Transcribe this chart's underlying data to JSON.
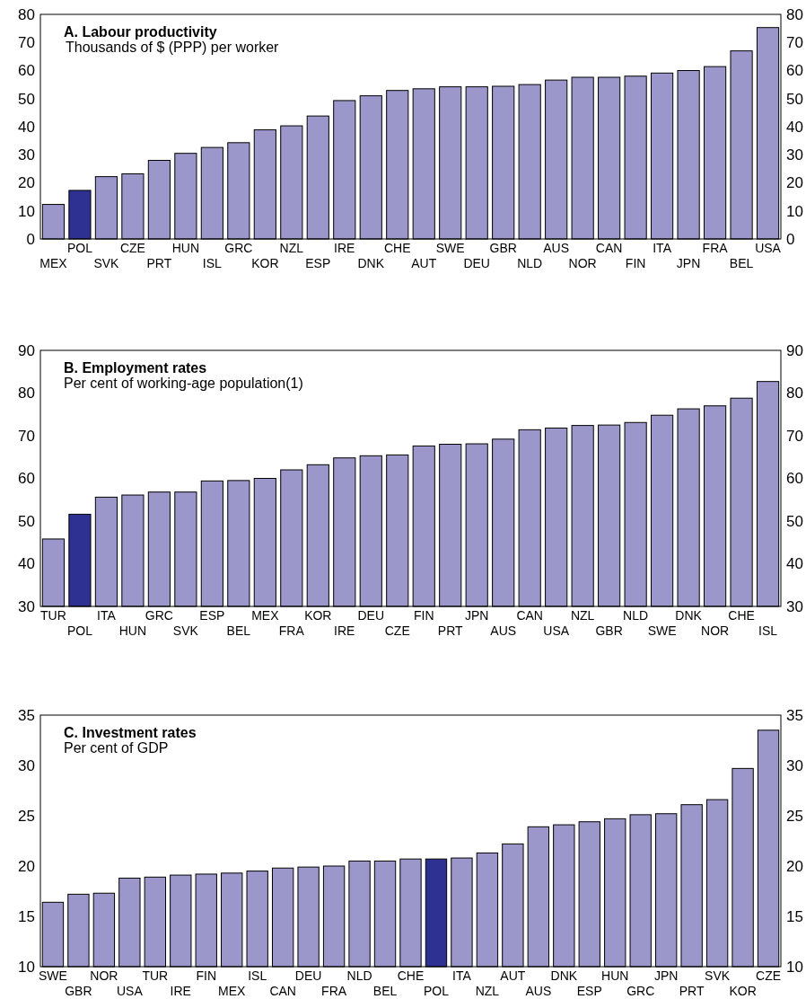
{
  "chart_data": [
    {
      "type": "bar",
      "title": "A. Labour productivity",
      "subtitle": "Thousands of $ (PPP) per worker",
      "categories": [
        "MEX",
        "POL",
        "SVK",
        "CZE",
        "PRT",
        "HUN",
        "ISL",
        "GRC",
        "KOR",
        "NZL",
        "ESP",
        "IRE",
        "DNK",
        "CHE",
        "AUT",
        "SWE",
        "DEU",
        "GBR",
        "NLD",
        "AUS",
        "NOR",
        "CAN",
        "FIN",
        "ITA",
        "JPN",
        "FRA",
        "BEL",
        "USA"
      ],
      "values": [
        12.3,
        17.3,
        22.2,
        23.2,
        28,
        30.5,
        32.6,
        34.3,
        38.9,
        40.3,
        43.8,
        49.3,
        51,
        52.9,
        53.5,
        54.2,
        54.2,
        54.4,
        55,
        56.6,
        57.6,
        57.6,
        58,
        59.1,
        60,
        61.4,
        67,
        75.3
      ],
      "colors": [
        "#9b97cb",
        "#2e3192",
        "#9b97cb",
        "#9b97cb",
        "#9b97cb",
        "#9b97cb",
        "#9b97cb",
        "#9b97cb",
        "#9b97cb",
        "#9b97cb",
        "#9b97cb",
        "#9b97cb",
        "#9b97cb",
        "#9b97cb",
        "#9b97cb",
        "#9b97cb",
        "#9b97cb",
        "#9b97cb",
        "#9b97cb",
        "#9b97cb",
        "#9b97cb",
        "#9b97cb",
        "#9b97cb",
        "#9b97cb",
        "#9b97cb",
        "#9b97cb",
        "#9b97cb",
        "#9b97cb"
      ],
      "ylim": [
        0,
        80
      ],
      "yticks": [
        0,
        10,
        20,
        30,
        40,
        50,
        60,
        70,
        80
      ],
      "y2lim": [
        0,
        80
      ],
      "y2ticks": [
        0,
        10,
        20,
        30,
        40,
        50,
        60,
        70,
        80
      ]
    },
    {
      "type": "bar",
      "title": "B. Employment rates",
      "subtitle": "Per cent of working-age population(1)",
      "categories": [
        "TUR",
        "POL",
        "ITA",
        "HUN",
        "GRC",
        "SVK",
        "ESP",
        "BEL",
        "MEX",
        "FRA",
        "KOR",
        "IRE",
        "DEU",
        "CZE",
        "FIN",
        "PRT",
        "JPN",
        "AUS",
        "CAN",
        "USA",
        "NZL",
        "GBR",
        "NLD",
        "SWE",
        "DNK",
        "NOR",
        "CHE",
        "ISL"
      ],
      "values": [
        45.8,
        51.6,
        55.6,
        56.1,
        56.8,
        56.8,
        59.4,
        59.5,
        60,
        62,
        63.2,
        64.8,
        65.3,
        65.5,
        67.6,
        68,
        68.1,
        69.2,
        71.4,
        71.8,
        72.4,
        72.5,
        73.1,
        74.8,
        76.3,
        77,
        78.8,
        82.7
      ],
      "colors": [
        "#9b97cb",
        "#2e3192",
        "#9b97cb",
        "#9b97cb",
        "#9b97cb",
        "#9b97cb",
        "#9b97cb",
        "#9b97cb",
        "#9b97cb",
        "#9b97cb",
        "#9b97cb",
        "#9b97cb",
        "#9b97cb",
        "#9b97cb",
        "#9b97cb",
        "#9b97cb",
        "#9b97cb",
        "#9b97cb",
        "#9b97cb",
        "#9b97cb",
        "#9b97cb",
        "#9b97cb",
        "#9b97cb",
        "#9b97cb",
        "#9b97cb",
        "#9b97cb",
        "#9b97cb",
        "#9b97cb"
      ],
      "ylim": [
        30,
        90
      ],
      "yticks": [
        30,
        40,
        50,
        60,
        70,
        80,
        90
      ],
      "y2lim": [
        30,
        90
      ],
      "y2ticks": [
        30,
        40,
        50,
        60,
        70,
        80,
        90
      ]
    },
    {
      "type": "bar",
      "title": "C. Investment rates",
      "subtitle": "Per cent of GDP",
      "categories": [
        "SWE",
        "GBR",
        "NOR",
        "USA",
        "TUR",
        "IRE",
        "FIN",
        "MEX",
        "ISL",
        "CAN",
        "DEU",
        "FRA",
        "NLD",
        "BEL",
        "CHE",
        "POL",
        "ITA",
        "NZL",
        "AUT",
        "AUS",
        "DNK",
        "ESP",
        "HUN",
        "GRC",
        "JPN",
        "PRT",
        "SVK",
        "KOR",
        "CZE"
      ],
      "values": [
        16.4,
        17.2,
        17.3,
        18.8,
        18.9,
        19.1,
        19.2,
        19.3,
        19.5,
        19.8,
        19.9,
        20,
        20.5,
        20.5,
        20.7,
        20.7,
        20.8,
        21.3,
        22.2,
        23.9,
        24.1,
        24.4,
        24.7,
        25.1,
        25.2,
        26.1,
        26.6,
        29.7,
        33.5
      ],
      "colors": [
        "#9b97cb",
        "#9b97cb",
        "#9b97cb",
        "#9b97cb",
        "#9b97cb",
        "#9b97cb",
        "#9b97cb",
        "#9b97cb",
        "#9b97cb",
        "#9b97cb",
        "#9b97cb",
        "#9b97cb",
        "#9b97cb",
        "#9b97cb",
        "#9b97cb",
        "#2e3192",
        "#9b97cb",
        "#9b97cb",
        "#9b97cb",
        "#9b97cb",
        "#9b97cb",
        "#9b97cb",
        "#9b97cb",
        "#9b97cb",
        "#9b97cb",
        "#9b97cb",
        "#9b97cb",
        "#9b97cb",
        "#9b97cb"
      ],
      "ylim": [
        10,
        35
      ],
      "yticks": [
        10,
        15,
        20,
        25,
        30,
        35
      ],
      "y2lim": [
        10,
        35
      ],
      "y2ticks": [
        10,
        15,
        20,
        25,
        30,
        35
      ]
    }
  ]
}
